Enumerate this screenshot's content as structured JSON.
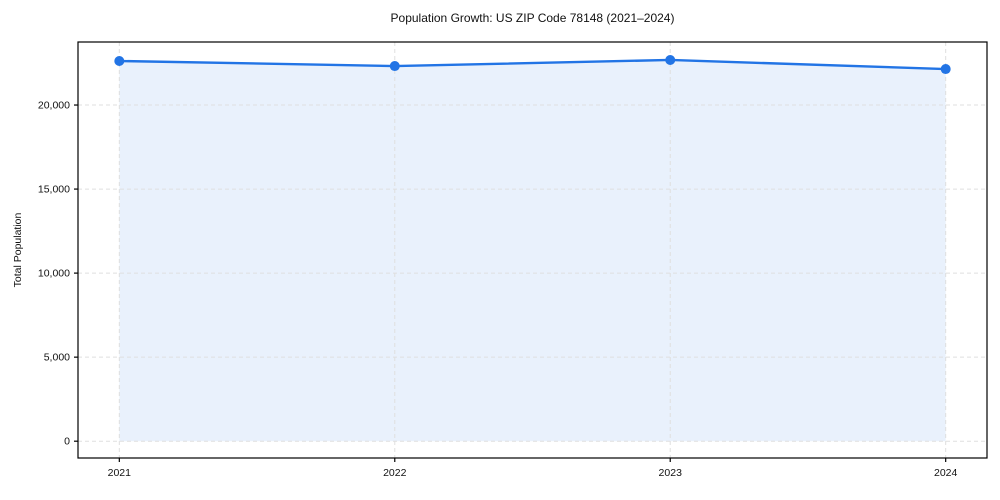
{
  "chart_data": {
    "type": "area",
    "title": "Population Growth: US ZIP Code 78148 (2021–2024)",
    "xlabel": "",
    "ylabel": "Total Population",
    "x": [
      2021,
      2022,
      2023,
      2024
    ],
    "series": [
      {
        "name": "Total Population",
        "values": [
          22620,
          22320,
          22680,
          22140
        ]
      }
    ],
    "x_ticks": [
      2021,
      2022,
      2023,
      2024
    ],
    "x_tick_labels": [
      "2021",
      "2022",
      "2023",
      "2024"
    ],
    "y_ticks": [
      0,
      5000,
      10000,
      15000,
      20000
    ],
    "y_tick_labels": [
      "0",
      "5,000",
      "10,000",
      "15,000",
      "20,000"
    ],
    "xlim": [
      2020.85,
      2024.15
    ],
    "ylim": [
      -1000,
      23750
    ],
    "fill_baseline": 0,
    "grid": true,
    "grid_style": "dashed",
    "legend": "none",
    "colors": {
      "line": "#2274e5",
      "marker": "#2274e5",
      "fill": "#e9f1fc",
      "grid": "#dfdfdf",
      "spine": "#000000",
      "text": "#111111",
      "background": "#ffffff"
    }
  }
}
